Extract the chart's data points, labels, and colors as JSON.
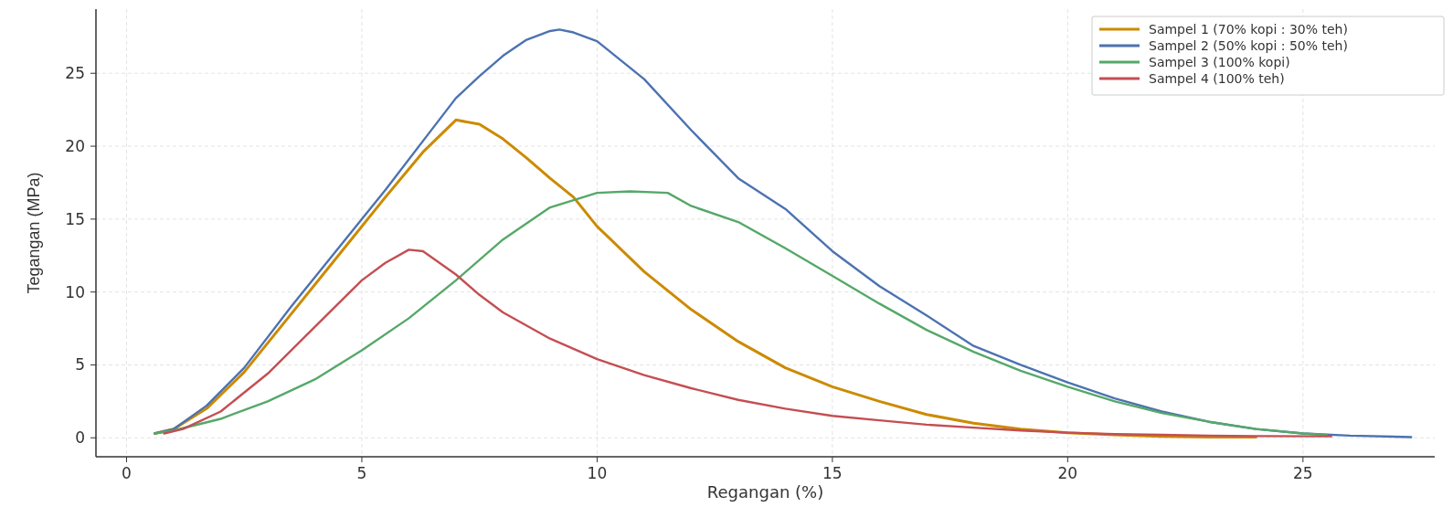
{
  "chart_data": {
    "type": "line",
    "xlabel": "Regangan (%)",
    "ylabel": "Tegangan (MPa)",
    "xlim": [
      -0.65,
      27.8
    ],
    "ylim": [
      -1.3,
      29.4
    ],
    "xticks": [
      0,
      5,
      10,
      15,
      20,
      25
    ],
    "yticks": [
      0,
      5,
      10,
      15,
      20,
      25
    ],
    "grid": true,
    "legend": "top right",
    "line_style": "solid",
    "marker": "none",
    "series": [
      {
        "name": "Sampel 1 (70% kopi : 30% teh)",
        "color": "#cc8a00",
        "x": [
          0.6,
          1,
          1.7,
          2.5,
          3.5,
          4.5,
          5.5,
          6.3,
          7,
          7.5,
          8,
          8.5,
          9,
          9.5,
          10,
          11,
          12,
          13,
          14,
          15,
          16,
          17,
          18,
          19,
          20,
          21,
          22,
          23,
          24
        ],
        "values": [
          0.3,
          0.6,
          2,
          4.5,
          8.5,
          12.5,
          16.5,
          19.6,
          21.8,
          21.5,
          20.5,
          19.2,
          17.8,
          16.5,
          14.5,
          11.4,
          8.8,
          6.6,
          4.8,
          3.5,
          2.5,
          1.6,
          1.0,
          0.6,
          0.35,
          0.2,
          0.1,
          0.05,
          0.05
        ]
      },
      {
        "name": "Sampel 2 (50% kopi : 50% teh)",
        "color": "#4c72b0",
        "x": [
          0.6,
          1,
          1.7,
          2.5,
          3.5,
          4.5,
          5.5,
          6.5,
          7,
          7.5,
          8,
          8.5,
          9,
          9.2,
          9.5,
          10,
          11,
          12,
          13,
          14,
          15,
          16,
          17,
          18,
          19,
          20,
          21,
          22,
          23,
          24,
          25,
          26,
          27.3
        ],
        "values": [
          0.3,
          0.6,
          2.2,
          4.8,
          9,
          13,
          17,
          21.2,
          23.3,
          24.8,
          26.2,
          27.3,
          27.9,
          28,
          27.8,
          27.2,
          24.6,
          21.1,
          17.8,
          15.7,
          12.8,
          10.4,
          8.4,
          6.3,
          5,
          3.8,
          2.7,
          1.8,
          1.1,
          0.6,
          0.3,
          0.15,
          0.05
        ]
      },
      {
        "name": "Sampel 3 (100% kopi)",
        "color": "#55a868",
        "x": [
          0.6,
          1,
          2,
          3,
          4,
          5,
          6,
          7,
          8,
          9,
          10,
          10.7,
          11.5,
          12,
          13,
          14,
          15,
          16,
          17,
          18,
          19,
          20,
          21,
          22,
          23,
          24,
          25,
          25.5
        ],
        "values": [
          0.3,
          0.5,
          1.3,
          2.5,
          4,
          6,
          8.2,
          10.8,
          13.6,
          15.8,
          16.8,
          16.9,
          16.8,
          15.9,
          14.8,
          13,
          11.1,
          9.2,
          7.4,
          5.9,
          4.6,
          3.5,
          2.5,
          1.7,
          1.1,
          0.6,
          0.3,
          0.2
        ]
      },
      {
        "name": "Sampel 4 (100% teh)",
        "color": "#c44e52",
        "x": [
          0.8,
          1.2,
          2,
          3,
          4,
          5,
          5.5,
          6,
          6.3,
          7,
          7.5,
          8,
          9,
          10,
          11,
          12,
          13,
          14,
          15,
          16,
          17,
          18,
          19,
          20,
          21,
          22,
          23,
          24,
          25.6
        ],
        "values": [
          0.3,
          0.6,
          1.8,
          4.4,
          7.6,
          10.8,
          12,
          12.9,
          12.8,
          11.2,
          9.8,
          8.6,
          6.8,
          5.4,
          4.3,
          3.4,
          2.6,
          2,
          1.5,
          1.2,
          0.9,
          0.7,
          0.5,
          0.35,
          0.25,
          0.2,
          0.15,
          0.12,
          0.1
        ]
      }
    ]
  }
}
